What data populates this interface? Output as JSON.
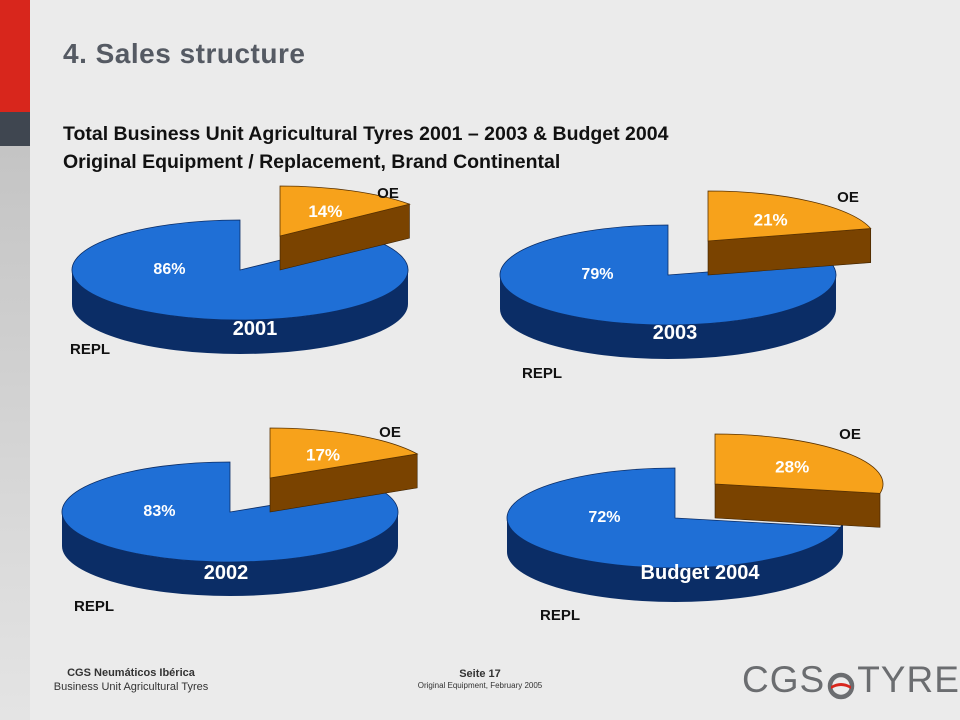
{
  "slide": {
    "title": "4. Sales structure",
    "subtitle_line1": "Total Business Unit Agricultural Tyres 2001 – 2003 & Budget 2004",
    "subtitle_line2": "Original Equipment / Replacement, Brand Continental"
  },
  "footer": {
    "company": "CGS Neumáticos Ibérica",
    "unit": "Business Unit Agricultural Tyres",
    "page": "Seite 17",
    "note": "Original Equipment, February 2005",
    "logo_left": "CGS",
    "logo_right": "TYRES"
  },
  "colors": {
    "oe_top": "#f7a21b",
    "oe_side": "#7a4300",
    "repl_top": "#1f6fd6",
    "repl_side": "#0b2d66",
    "accent_red": "#d8261c"
  },
  "chart_data": [
    {
      "type": "pie",
      "label": "2001",
      "categories": [
        "OE",
        "REPL"
      ],
      "values": [
        14,
        86
      ],
      "data_labels": [
        "14%",
        "86%"
      ]
    },
    {
      "type": "pie",
      "label": "2003",
      "categories": [
        "OE",
        "REPL"
      ],
      "values": [
        21,
        79
      ],
      "data_labels": [
        "21%",
        "79%"
      ]
    },
    {
      "type": "pie",
      "label": "2002",
      "categories": [
        "OE",
        "REPL"
      ],
      "values": [
        17,
        83
      ],
      "data_labels": [
        "17%",
        "83%"
      ]
    },
    {
      "type": "pie",
      "label": "Budget 2004",
      "categories": [
        "OE",
        "REPL"
      ],
      "values": [
        28,
        72
      ],
      "data_labels": [
        "28%",
        "72%"
      ]
    }
  ]
}
